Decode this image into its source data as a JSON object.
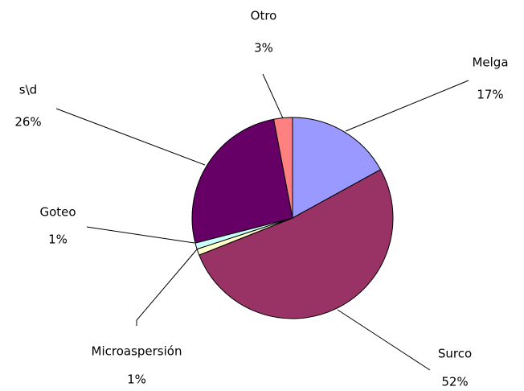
{
  "chart_data": {
    "type": "pie",
    "categories": [
      "Melga",
      "Surco",
      "Microaspersión",
      "Goteo",
      "s\\d",
      "Otro"
    ],
    "values": [
      17,
      52,
      1,
      1,
      26,
      3
    ],
    "value_labels": [
      "17%",
      "52%",
      "1%",
      "1%",
      "26%",
      "3%"
    ],
    "colors": [
      "#9999ff",
      "#993366",
      "#ffffcc",
      "#ccffff",
      "#660066",
      "#ff8080"
    ]
  }
}
